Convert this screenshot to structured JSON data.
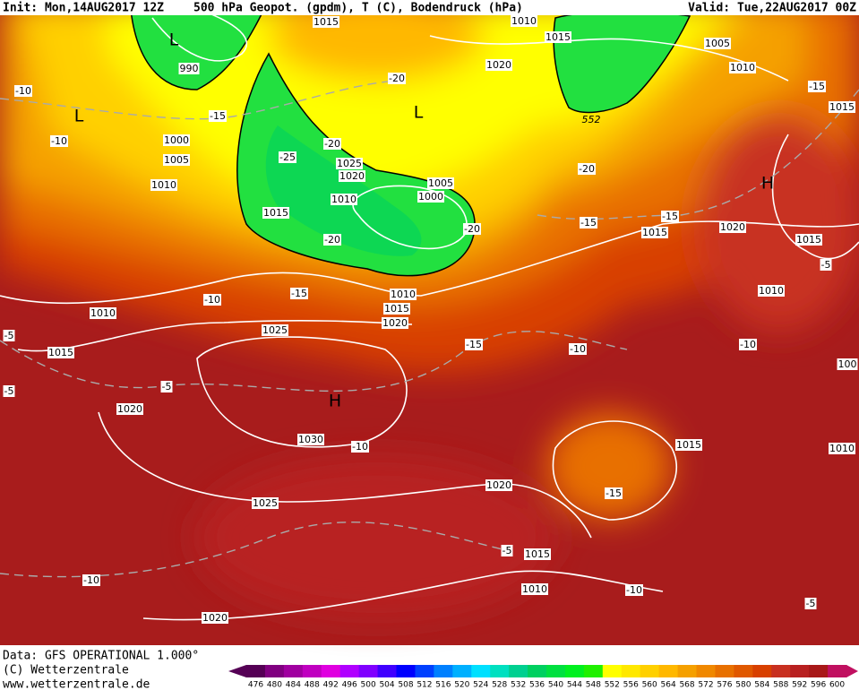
{
  "header": {
    "init": "Init: Mon,14AUG2017 12Z",
    "title": "500 hPa Geopot. (gpdm), T (C), Bodendruck (hPa)",
    "valid": "Valid: Tue,22AUG2017 00Z"
  },
  "footer": {
    "data_source": "Data: GFS OPERATIONAL 1.000°",
    "copyright": "(C) Wetterzentrale",
    "url": "www.wetterzentrale.de"
  },
  "legend": {
    "values": [
      476,
      480,
      484,
      488,
      492,
      496,
      500,
      504,
      508,
      512,
      516,
      520,
      524,
      528,
      532,
      536,
      540,
      544,
      548,
      552,
      556,
      560,
      564,
      568,
      572,
      576,
      580,
      584,
      588,
      592,
      596,
      600
    ],
    "colors": [
      "#550055",
      "#800080",
      "#a000a0",
      "#c000c0",
      "#e000e0",
      "#b000ff",
      "#8000ff",
      "#4000ff",
      "#0000ff",
      "#0040ff",
      "#0080ff",
      "#00b0ff",
      "#00e0ff",
      "#00e0c0",
      "#00d090",
      "#00d060",
      "#00e040",
      "#00f020",
      "#20f000",
      "#ffff00",
      "#ffe800",
      "#ffd000",
      "#ffb800",
      "#f5a000",
      "#f08800",
      "#e87000",
      "#e05800",
      "#d84000",
      "#c83020",
      "#b82020",
      "#a81818",
      "#c01060"
    ]
  },
  "map": {
    "pressure_labels": [
      "1015",
      "1010",
      "1015",
      "1005",
      "1010",
      "1020",
      "990",
      "1000",
      "1005",
      "1010",
      "1025",
      "1020",
      "1010",
      "1005",
      "1000",
      "1015",
      "1015",
      "1020",
      "1015",
      "1010",
      "1010",
      "1015",
      "1020",
      "1010",
      "1025",
      "1015",
      "1020",
      "1030",
      "1015",
      "1025",
      "1020",
      "1015",
      "1010",
      "1020",
      "1010",
      "1015",
      "100"
    ],
    "temperature_labels": [
      "-10",
      "-10",
      "-15",
      "-20",
      "-20",
      "-25",
      "-20",
      "-20",
      "-20",
      "-15",
      "-15",
      "-15",
      "-15",
      "-10",
      "-5",
      "-5",
      "-5",
      "-15",
      "-10",
      "-10",
      "-5",
      "-10",
      "-15",
      "-5",
      "-10",
      "-10",
      "-5"
    ],
    "centers": [
      "L",
      "L",
      "L",
      "H",
      "H"
    ],
    "contour_label": "552"
  }
}
